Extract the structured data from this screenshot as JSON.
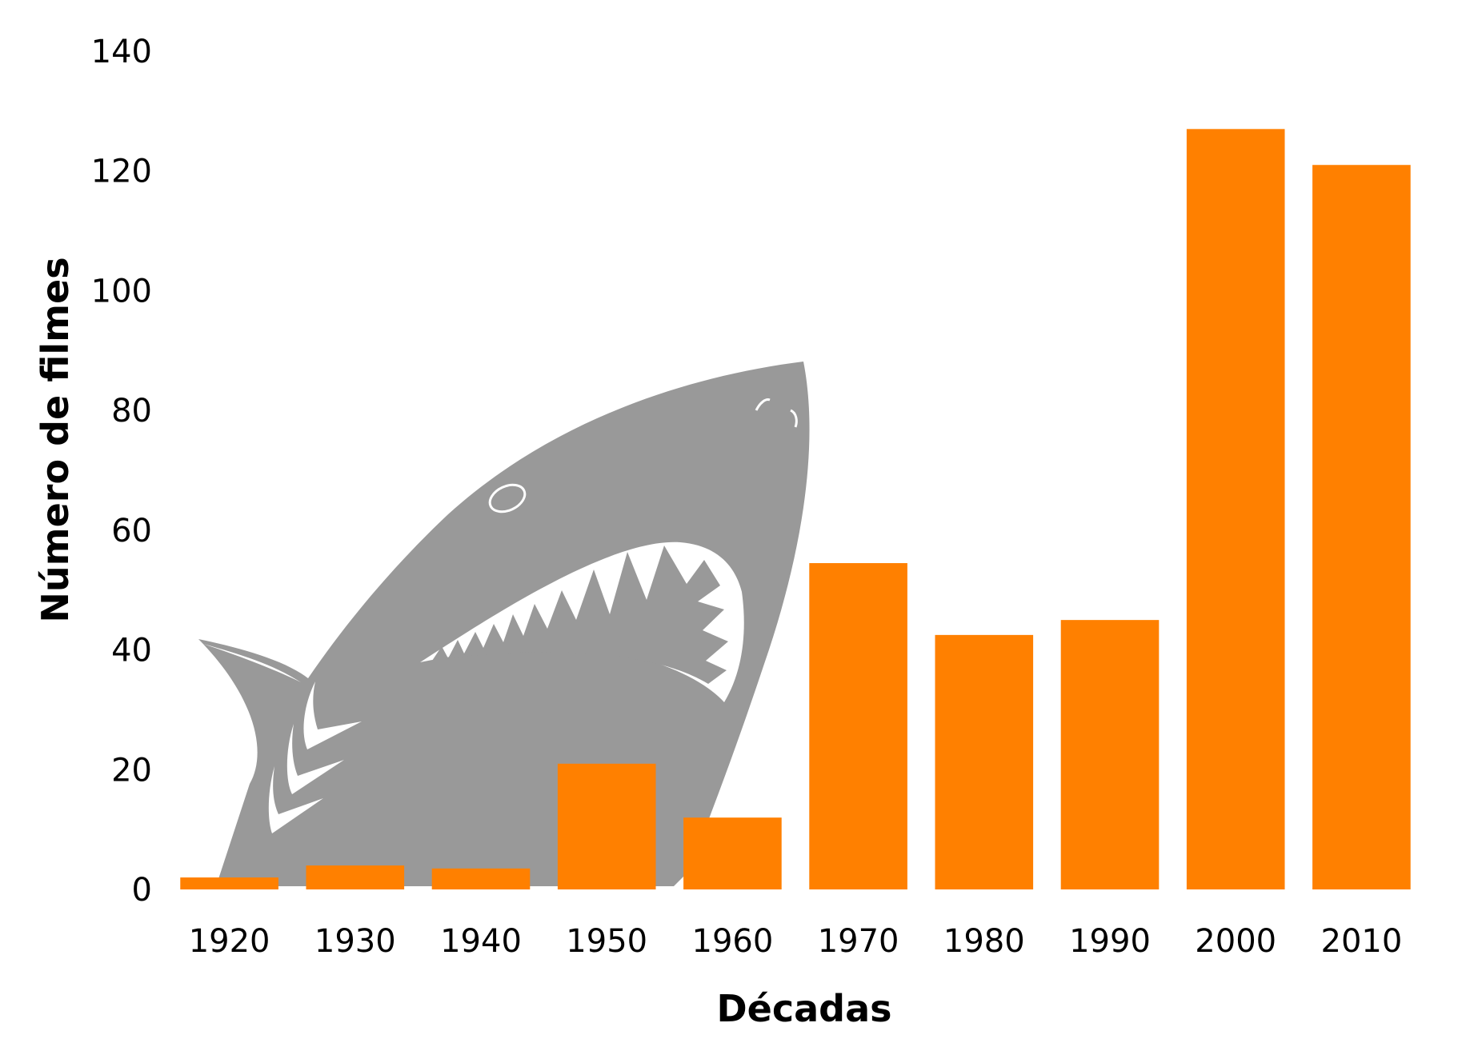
{
  "chart_data": {
    "type": "bar",
    "categories": [
      "1920",
      "1930",
      "1940",
      "1950",
      "1960",
      "1970",
      "1980",
      "1990",
      "2000",
      "2010"
    ],
    "values": [
      2,
      4,
      3.5,
      21,
      12,
      54.5,
      42.5,
      45,
      127,
      121
    ],
    "xlabel": "Décadas",
    "ylabel": "Número de filmes",
    "ylim": [
      0,
      140
    ],
    "yticks": [
      0,
      20,
      40,
      60,
      80,
      100,
      120,
      140
    ],
    "bar_color": "#ff8000",
    "grid": false,
    "background_image": "shark-silhouette",
    "background_image_color": "#999999"
  }
}
